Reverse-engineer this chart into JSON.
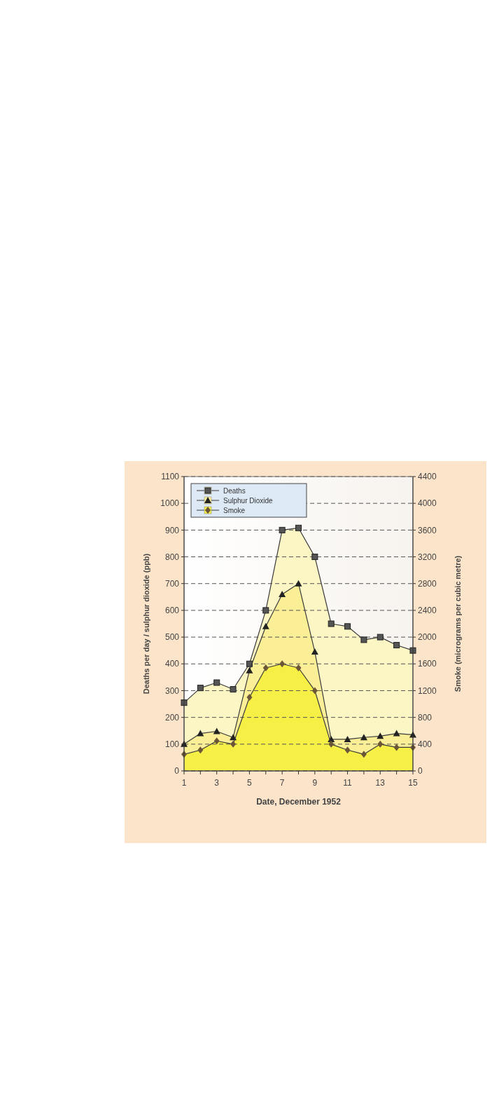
{
  "chart_data": {
    "type": "area",
    "xlabel": "Date, December 1952",
    "ylabel": "Deaths per day / sulphur dioxide (ppb)",
    "y2label": "Smoke (micrograms per cubic metre)",
    "x": [
      1,
      2,
      3,
      4,
      5,
      6,
      7,
      8,
      9,
      10,
      11,
      12,
      13,
      14,
      15
    ],
    "series": [
      {
        "name": "Deaths",
        "color": "#fcf5c4",
        "marker": "square",
        "values": [
          255,
          310,
          330,
          305,
          400,
          600,
          900,
          908,
          800,
          550,
          540,
          490,
          500,
          470,
          450
        ]
      },
      {
        "name": "Sulphur Dioxide",
        "color": "#faef96",
        "marker": "triangle",
        "values": [
          100,
          140,
          148,
          125,
          375,
          540,
          660,
          700,
          445,
          118,
          118,
          125,
          130,
          140,
          135
        ]
      },
      {
        "name": "Smoke",
        "color": "#f6ef45",
        "marker": "diamond",
        "axis": "y2",
        "values": [
          248,
          312,
          448,
          400,
          1100,
          1540,
          1600,
          1540,
          1200,
          400,
          312,
          248,
          400,
          352,
          352
        ]
      }
    ],
    "xlim": [
      1,
      15
    ],
    "xticks": [
      1,
      {
        "value": 2,
        "label": null
      },
      3,
      {
        "value": 4,
        "label": null
      },
      5,
      {
        "value": 6,
        "label": null
      },
      7,
      {
        "value": 8,
        "label": null
      },
      9,
      {
        "value": 10,
        "label": null
      },
      11,
      {
        "value": 12,
        "label": null
      },
      13,
      {
        "value": 14,
        "label": null
      },
      15
    ],
    "ylim": [
      0,
      1100
    ],
    "yticks": [
      0,
      100,
      200,
      300,
      400,
      500,
      600,
      700,
      800,
      900,
      1000,
      1100
    ],
    "y2lim": [
      0,
      4400
    ],
    "y2ticks": [
      0,
      400,
      800,
      1200,
      1600,
      2000,
      2400,
      2800,
      3200,
      3600,
      4000,
      4400
    ],
    "grid": "y",
    "line_style": "solid",
    "legend": "top left"
  }
}
